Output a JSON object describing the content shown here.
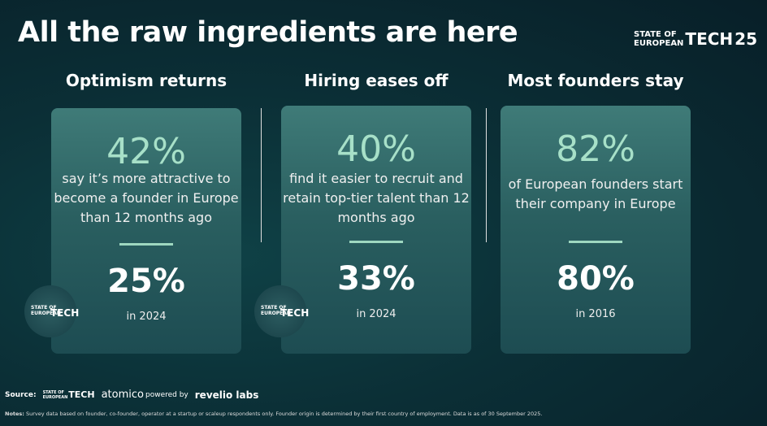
{
  "header": {
    "title": "All the raw ingredients are here",
    "logo": {
      "state": "STATE",
      "of": "OF",
      "european": "EUROPEAN",
      "tech": "TECH",
      "year": "25"
    }
  },
  "cards": [
    {
      "heading": "Optimism returns",
      "stat": "42%",
      "description": "say it’s more attractive to become a founder in Europe than 12 months ago",
      "compare": "25%",
      "compare_label": "in 2024",
      "badge": {
        "line1": "STATE OF",
        "line2": "EUROPEAN",
        "tech": "TECH"
      }
    },
    {
      "heading": "Hiring eases off",
      "stat": "40%",
      "description": "find it easier to recruit and retain top-tier talent than 12 months ago",
      "compare": "33%",
      "compare_label": "in 2024",
      "badge": {
        "line1": "STATE OF",
        "line2": "EUROPEAN",
        "tech": "TECH"
      }
    },
    {
      "heading": "Most founders stay",
      "stat": "82%",
      "description": "of European founders start their company in Europe",
      "compare": "80%",
      "compare_label": "in 2016"
    }
  ],
  "footer": {
    "source_label": "Source:",
    "source_logo": {
      "line1": "STATE OF",
      "line2": "EUROPEAN",
      "tech": "TECH"
    },
    "atomico": "atomico",
    "powered_by": "powered by",
    "revelio": "revelio labs",
    "notes_label": "Notes:",
    "notes": "Survey data based on founder, co-founder, operator at a startup or scaleup respondents only. Founder origin is determined by their first country of employment. Data is as of 30 September 2025."
  }
}
